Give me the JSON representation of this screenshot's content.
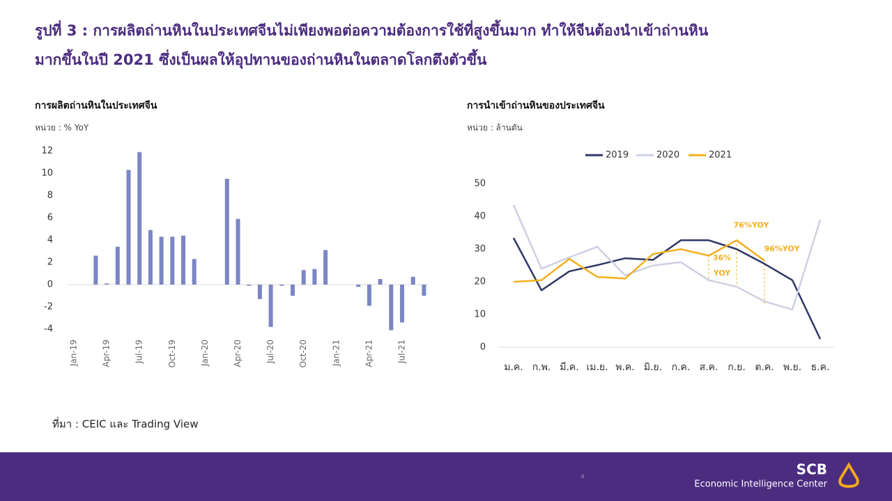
{
  "title": [
    "รูปที่ 3 : การผลิตถ่านหินในประเทศจีนไม่เพียงพอต่อความต้องการใช้ที่สูงขึ้นมาก ทำให้จีนต้องนำเข้าถ่านหิน",
    "มากขึ้นในปี 2021 ซึ่งเป็นผลให้อุปทานของถ่านหินในตลาดโลกตึงตัวขึ้น"
  ],
  "source": "ที่มา : CEIC และ Trading View",
  "footer": {
    "page": "4",
    "brand": "SCB",
    "unit": "Economic Intelligence Center"
  },
  "chart_data": [
    {
      "type": "bar",
      "title": "การผลิตถ่านหินในประเทศจีน",
      "subtitle": "หน่วย : % YoY",
      "categories": [
        "Jan-19",
        null,
        null,
        "Apr-19",
        null,
        null,
        "Jul-19",
        null,
        null,
        "Oct-19",
        null,
        null,
        "Jan-20",
        null,
        null,
        "Apr-20",
        null,
        null,
        "Jul-20",
        null,
        null,
        "Oct-20",
        null,
        null,
        "Jan-21",
        null,
        null,
        "Apr-21",
        null,
        null,
        "Jul-21",
        null,
        null
      ],
      "values": [
        null,
        null,
        2.6,
        0.1,
        3.4,
        10.3,
        11.9,
        4.9,
        4.3,
        4.3,
        4.4,
        2.3,
        null,
        null,
        9.5,
        5.9,
        -0.1,
        -1.3,
        -3.8,
        -0.1,
        -1.0,
        1.3,
        1.4,
        3.1,
        null,
        null,
        -0.2,
        -1.9,
        0.5,
        -4.1,
        -3.4,
        0.7,
        -1.0
      ],
      "color": "#7b86c4",
      "ylim": [
        -4,
        12
      ],
      "yticks": [
        12,
        10,
        8,
        6,
        4,
        2,
        0,
        -2,
        -4
      ],
      "grid": false
    },
    {
      "type": "line",
      "title": "การนำเข้าถ่านหินของประเทศจีน",
      "subtitle": "หน่วย : ล้านตัน",
      "categories": [
        "ม.ค.",
        "ก.พ.",
        "มี.ค.",
        "เม.ย.",
        "พ.ค.",
        "มิ.ย.",
        "ก.ค.",
        "ส.ค.",
        "ก.ย.",
        "ต.ค.",
        "พ.ย.",
        "ธ.ค."
      ],
      "series": [
        {
          "name": "2019",
          "color": "#2e3766",
          "values": [
            33.4,
            17.4,
            23.2,
            25.1,
            27.2,
            26.7,
            32.7,
            32.7,
            30,
            25.5,
            20.5,
            2.5
          ]
        },
        {
          "name": "2020",
          "color": "#cdd0e3",
          "values": [
            43.5,
            24,
            27.5,
            30.7,
            22,
            25,
            26,
            20.5,
            18.5,
            14,
            11.5,
            39
          ]
        },
        {
          "name": "2021",
          "color": "#f2b01e",
          "values": [
            20,
            20.5,
            27,
            21.5,
            21,
            28.5,
            30,
            28,
            32.7,
            26.5,
            null,
            null
          ]
        }
      ],
      "annotations": [
        [
          "36%",
          "YOY"
        ],
        [
          "76%YOY"
        ],
        [
          "96%YOY"
        ]
      ],
      "ylim": [
        0,
        50
      ],
      "yticks": [
        0,
        10,
        20,
        30,
        40,
        50
      ],
      "legend": "top",
      "grid": false
    }
  ]
}
